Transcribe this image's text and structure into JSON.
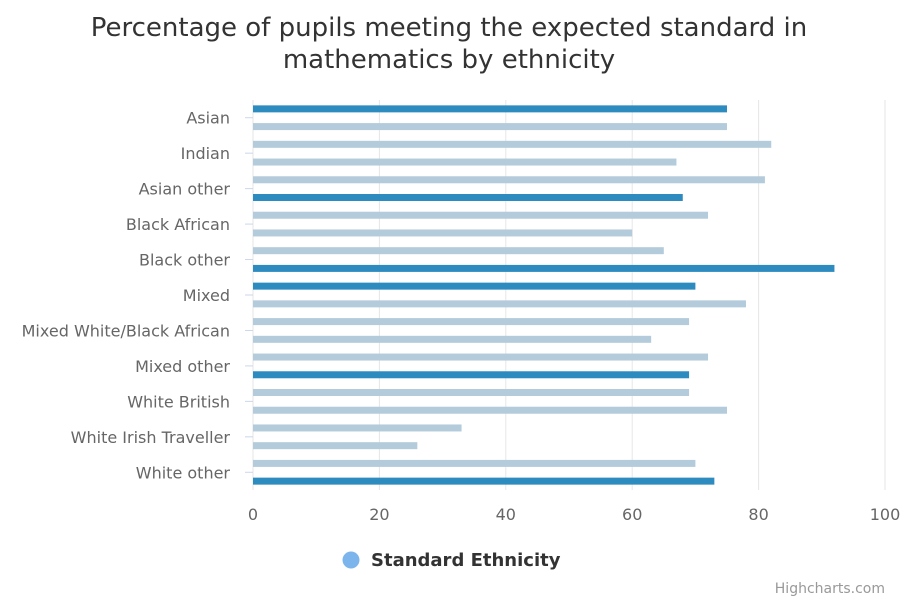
{
  "chart_data": {
    "type": "bar",
    "orientation": "horizontal",
    "title": "Percentage of pupils meeting the expected standard in mathematics by ethnicity",
    "title_lines": [
      "Percentage of pupils meeting the expected standard in",
      "mathematics by ethnicity"
    ],
    "xlabel": "",
    "ylabel": "",
    "xlim": [
      0,
      100
    ],
    "x_ticks": [
      "0",
      "20",
      "40",
      "60",
      "80",
      "100"
    ],
    "grid": true,
    "legend": {
      "placement": "bottom",
      "entries": [
        "Standard Ethnicity"
      ]
    },
    "series": [
      {
        "name": "Standard Ethnicity",
        "color": "#7cb5ec"
      }
    ],
    "category_labels": [
      "Asian",
      "Indian",
      "Asian other",
      "Black African",
      "Black other",
      "Mixed",
      "Mixed White/Black African",
      "Mixed other",
      "White British",
      "White Irish Traveller",
      "White other"
    ],
    "bars": [
      {
        "value": 75,
        "kind": "aggregate"
      },
      {
        "value": 75,
        "kind": "detail"
      },
      {
        "value": 82,
        "kind": "detail"
      },
      {
        "value": 67,
        "kind": "detail"
      },
      {
        "value": 81,
        "kind": "detail"
      },
      {
        "value": 68,
        "kind": "aggregate"
      },
      {
        "value": 72,
        "kind": "detail"
      },
      {
        "value": 60,
        "kind": "detail"
      },
      {
        "value": 65,
        "kind": "detail"
      },
      {
        "value": 92,
        "kind": "aggregate"
      },
      {
        "value": 70,
        "kind": "aggregate"
      },
      {
        "value": 78,
        "kind": "detail"
      },
      {
        "value": 69,
        "kind": "detail"
      },
      {
        "value": 63,
        "kind": "detail"
      },
      {
        "value": 72,
        "kind": "detail"
      },
      {
        "value": 69,
        "kind": "aggregate"
      },
      {
        "value": 69,
        "kind": "detail"
      },
      {
        "value": 75,
        "kind": "detail"
      },
      {
        "value": 33,
        "kind": "detail"
      },
      {
        "value": 26,
        "kind": "detail"
      },
      {
        "value": 70,
        "kind": "detail"
      },
      {
        "value": 73,
        "kind": "aggregate"
      }
    ],
    "colors": {
      "aggregate": "#2e8bc0",
      "detail": "#b3cbdb",
      "title": "#333333",
      "axis_label": "#666666",
      "grid": "#e6e6e6"
    }
  },
  "credits": "Highcharts.com"
}
